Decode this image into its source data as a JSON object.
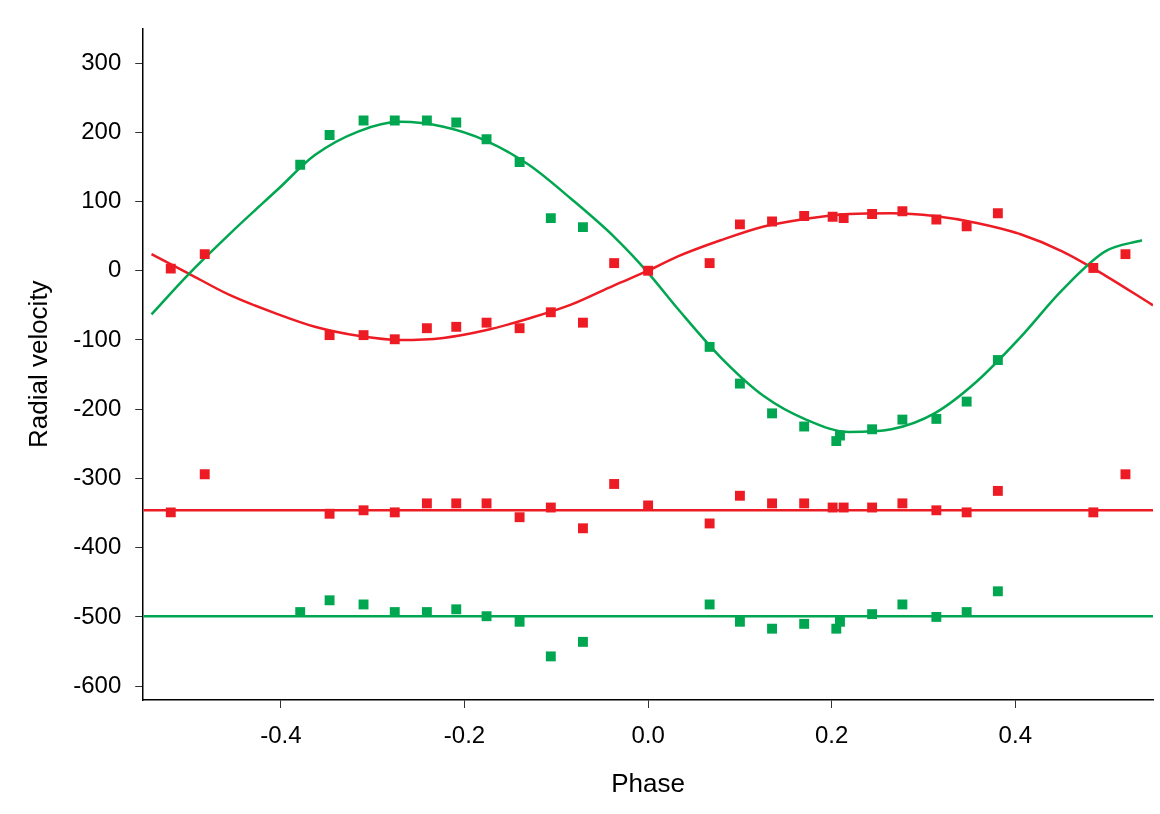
{
  "chart_data": {
    "type": "scatter",
    "xlabel": "Phase",
    "ylabel": "Radial velocity",
    "xlim": [
      -0.55,
      0.55
    ],
    "ylim": [
      -620,
      350
    ],
    "xticks": [
      {
        "value": -0.4,
        "label": "-0.4"
      },
      {
        "value": -0.2,
        "label": "-0.2"
      },
      {
        "value": 0,
        "label": "0.0"
      },
      {
        "value": 0.2,
        "label": "0.2"
      },
      {
        "value": 0.4,
        "label": "0.4"
      }
    ],
    "yticks": [
      -600,
      -500,
      -400,
      -300,
      -200,
      -100,
      0,
      100,
      200,
      300
    ],
    "grid": false,
    "legend": false,
    "marker": "square",
    "series": [
      {
        "type": "line",
        "marker": "none",
        "color": "#00a650",
        "x": [
          -0.541,
          -0.502,
          -0.456,
          -0.403,
          -0.363,
          -0.316,
          -0.27,
          -0.223,
          -0.177,
          -0.13,
          -0.084,
          -0.037,
          0,
          0.033,
          0.079,
          0.126,
          0.172,
          0.219,
          0.265,
          0.312,
          0.358,
          0.405,
          0.451,
          0.498,
          0.538
        ],
        "values": [
          -63,
          -7,
          53,
          118,
          167,
          201,
          215,
          208,
          188,
          153,
          104,
          49,
          -3,
          -56,
          -125,
          -181,
          -215,
          -233,
          -229,
          -206,
          -160,
          -97,
          -28,
          28,
          44
        ]
      },
      {
        "type": "line",
        "marker": "none",
        "color": "#ed1c24",
        "x": [
          -0.541,
          -0.502,
          -0.456,
          -0.403,
          -0.363,
          -0.316,
          -0.27,
          -0.223,
          -0.177,
          -0.13,
          -0.084,
          -0.037,
          0,
          0.033,
          0.079,
          0.126,
          0.172,
          0.219,
          0.265,
          0.312,
          0.358,
          0.405,
          0.451,
          0.498,
          0.55
        ],
        "values": [
          24,
          -3,
          -35,
          -63,
          -81,
          -94,
          -100,
          -97,
          -86,
          -69,
          -49,
          -21,
          0,
          21,
          44,
          64,
          75,
          82,
          83,
          79,
          69,
          53,
          28,
          -7,
          -50
        ]
      },
      {
        "type": "line",
        "marker": "none",
        "color": "#ed1c24",
        "x": [
          -0.55,
          0.55
        ],
        "values": [
          -346,
          -346
        ]
      },
      {
        "type": "line",
        "marker": "none",
        "color": "#00a650",
        "x": [
          -0.55,
          0.55
        ],
        "values": [
          -499,
          -499
        ]
      },
      {
        "type": "scatter",
        "color": "#00a650",
        "x": [
          -0.379,
          -0.347,
          -0.31,
          -0.276,
          -0.241,
          -0.209,
          -0.176,
          -0.14,
          -0.106,
          -0.071,
          0.067,
          0.1,
          0.135,
          0.17,
          0.205,
          0.209,
          0.244,
          0.277,
          0.314,
          0.347,
          0.381
        ],
        "values": [
          153,
          196,
          217,
          217,
          217,
          214,
          190,
          157,
          76,
          63,
          -110,
          -163,
          -206,
          -225,
          -246,
          -238,
          -229,
          -215,
          -214,
          -189,
          -129
        ]
      },
      {
        "type": "scatter",
        "color": "#ed1c24",
        "x": [
          -0.52,
          -0.483,
          -0.347,
          -0.31,
          -0.276,
          -0.241,
          -0.209,
          -0.176,
          -0.14,
          -0.106,
          -0.071,
          -0.037,
          0,
          0.067,
          0.1,
          0.135,
          0.17,
          0.201,
          0.213,
          0.244,
          0.277,
          0.314,
          0.347,
          0.381,
          0.485,
          0.52
        ],
        "values": [
          3,
          24,
          -93,
          -93,
          -99,
          -83,
          -81,
          -75,
          -83,
          -60,
          -75,
          11,
          0,
          11,
          67,
          71,
          79,
          78,
          76,
          82,
          86,
          74,
          64,
          83,
          4,
          24
        ]
      },
      {
        "type": "scatter",
        "color": "#ed1c24",
        "x": [
          -0.52,
          -0.483,
          -0.347,
          -0.31,
          -0.276,
          -0.241,
          -0.209,
          -0.176,
          -0.14,
          -0.106,
          -0.071,
          -0.037,
          0,
          0.067,
          0.1,
          0.135,
          0.17,
          0.201,
          0.213,
          0.244,
          0.277,
          0.314,
          0.347,
          0.381,
          0.485,
          0.52
        ],
        "values": [
          -349,
          -294,
          -351,
          -346,
          -349,
          -336,
          -336,
          -336,
          -356,
          -342,
          -372,
          -308,
          -339,
          -365,
          -325,
          -336,
          -336,
          -342,
          -342,
          -342,
          -336,
          -346,
          -349,
          -318,
          -349,
          -294
        ]
      },
      {
        "type": "scatter",
        "color": "#00a650",
        "x": [
          -0.379,
          -0.347,
          -0.31,
          -0.276,
          -0.241,
          -0.209,
          -0.176,
          -0.14,
          -0.106,
          -0.071,
          0.067,
          0.1,
          0.135,
          0.17,
          0.205,
          0.209,
          0.244,
          0.277,
          0.314,
          0.347,
          0.381
        ],
        "values": [
          -493,
          -476,
          -482,
          -493,
          -493,
          -489,
          -499,
          -507,
          -557,
          -536,
          -482,
          -507,
          -517,
          -510,
          -517,
          -507,
          -496,
          -482,
          -500,
          -493,
          -463
        ]
      }
    ]
  }
}
